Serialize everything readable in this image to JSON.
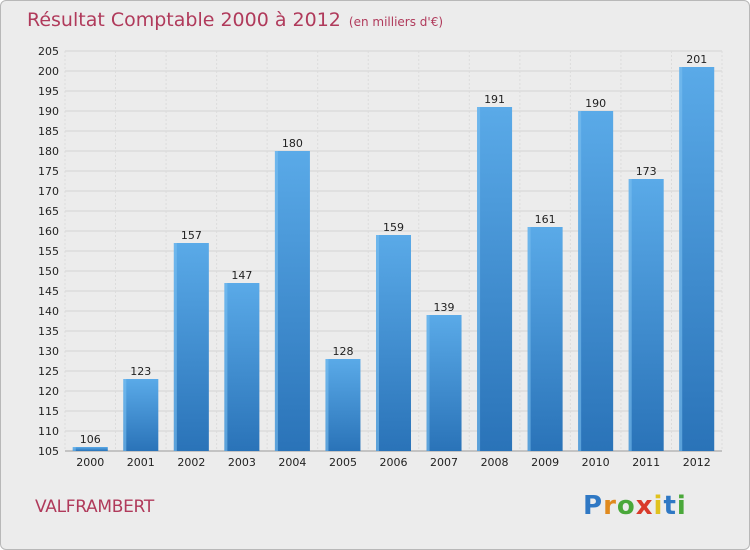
{
  "chart_data": {
    "type": "bar",
    "title": "Résultat Comptable 2000 à 2012",
    "subtitle": "(en milliers d'€)",
    "categories": [
      "2000",
      "2001",
      "2002",
      "2003",
      "2004",
      "2005",
      "2006",
      "2007",
      "2008",
      "2009",
      "2010",
      "2011",
      "2012"
    ],
    "values": [
      106,
      123,
      157,
      147,
      180,
      128,
      159,
      139,
      191,
      161,
      190,
      173,
      201
    ],
    "ylim": [
      105,
      205
    ],
    "yticks": [
      105,
      110,
      115,
      120,
      125,
      130,
      135,
      140,
      145,
      150,
      155,
      160,
      165,
      170,
      175,
      180,
      185,
      190,
      195,
      200,
      205
    ],
    "grid": true,
    "xlabel": "",
    "ylabel": ""
  },
  "commune": "VALFRAMBERT",
  "logo": {
    "letters": [
      "P",
      "r",
      "o",
      "x",
      "i",
      "t",
      "i"
    ],
    "colors": [
      "#2f78c4",
      "#e08a1e",
      "#4aa83a",
      "#d93a2a",
      "#e0c21e",
      "#2f78c4",
      "#4aa83a"
    ]
  },
  "colors": {
    "bar": "#3d8fd6",
    "bar_light": "#5aaae8",
    "bar_dark": "#2a73b8",
    "title": "#b03a5b"
  }
}
